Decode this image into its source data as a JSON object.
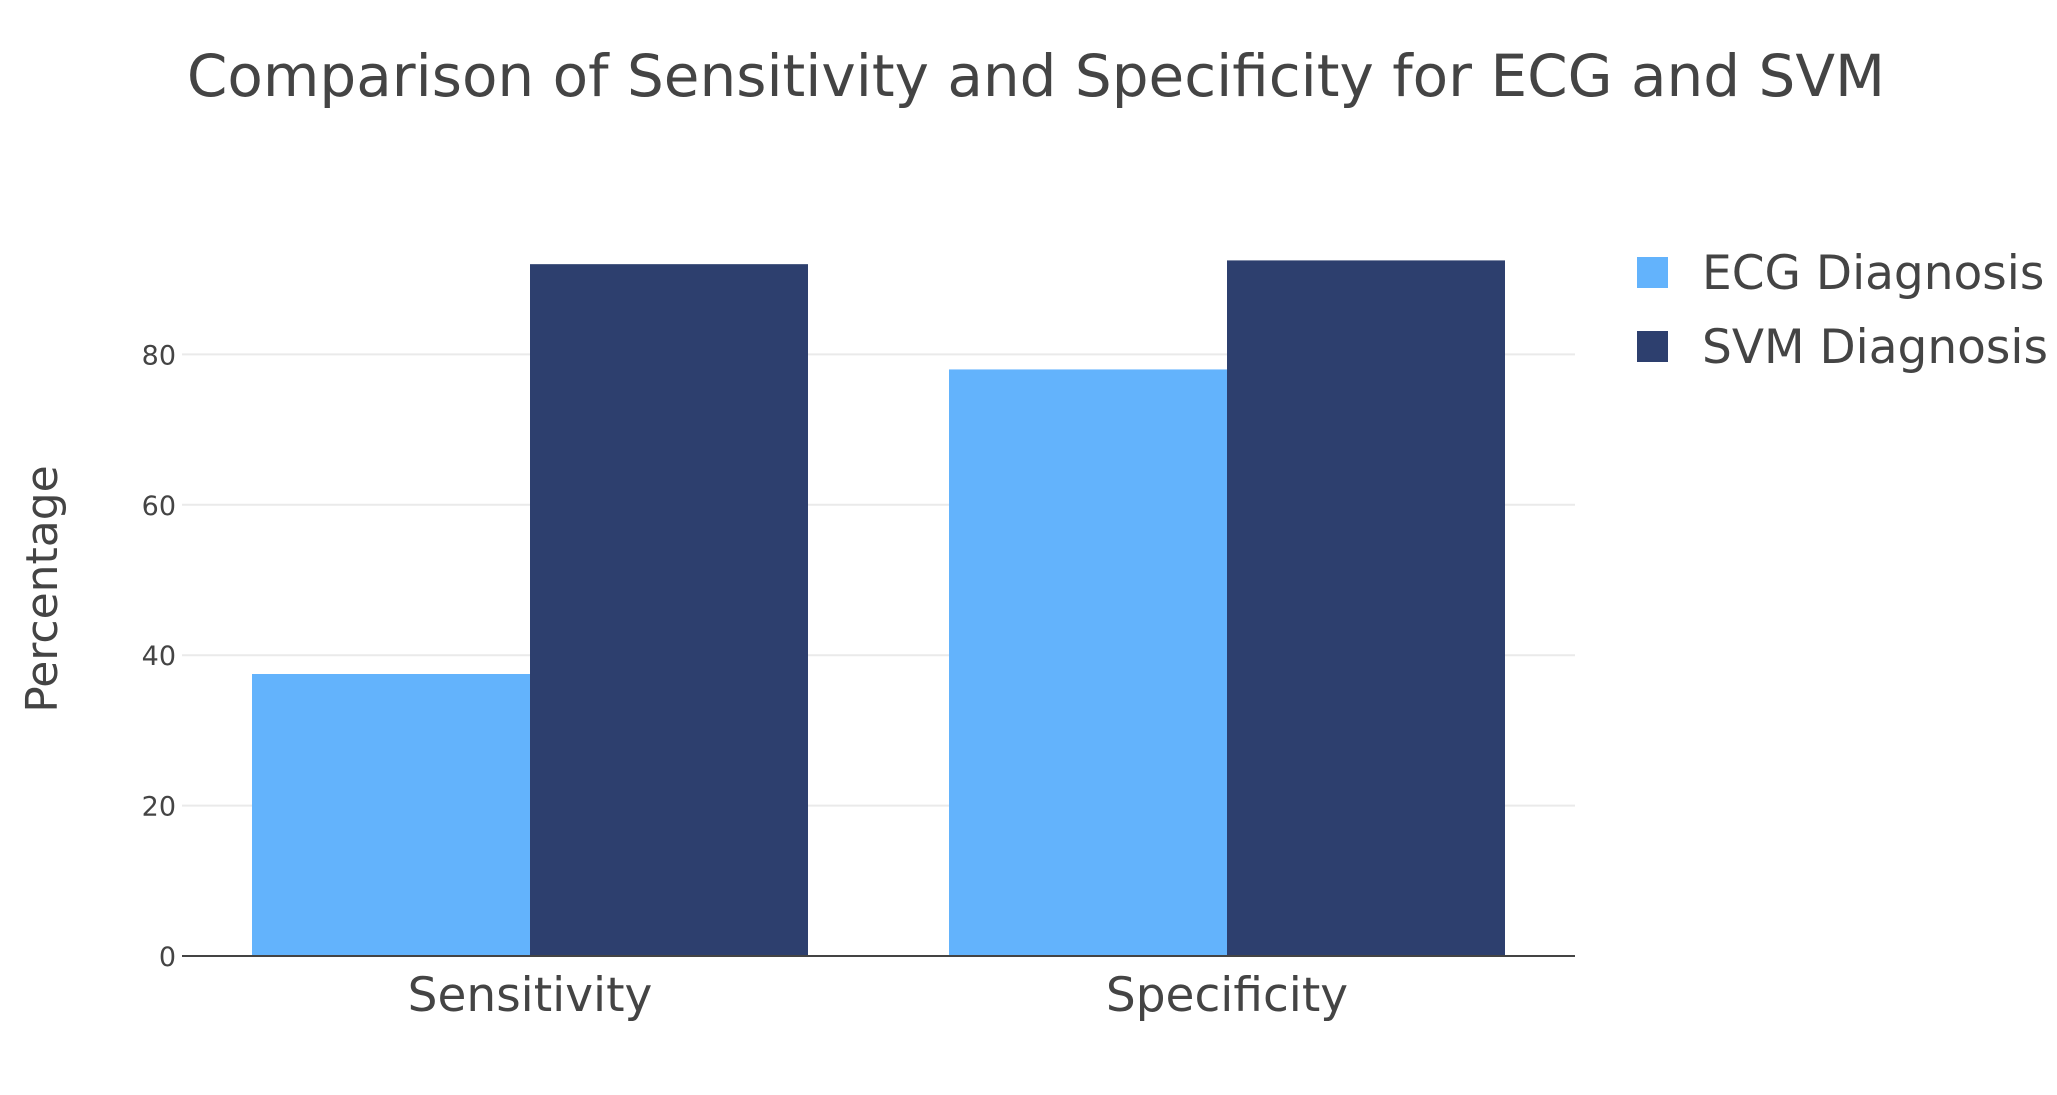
{
  "chart_data": {
    "type": "bar",
    "title": "Comparison of Sensitivity and Specificity for ECG and SVM",
    "xlabel": "",
    "ylabel": "Percentage",
    "categories": [
      "Sensitivity",
      "Specificity"
    ],
    "series": [
      {
        "name": "ECG Diagnosis",
        "values": [
          37.5,
          78.0
        ],
        "color": "#63b3fc"
      },
      {
        "name": "SVM Diagnosis",
        "values": [
          92.0,
          92.5
        ],
        "color": "#2d3f6e"
      }
    ],
    "ylim": [
      0,
      100
    ],
    "yticks": [
      0,
      20,
      40,
      60,
      80
    ],
    "grid": true,
    "legend_position": "top-right"
  }
}
